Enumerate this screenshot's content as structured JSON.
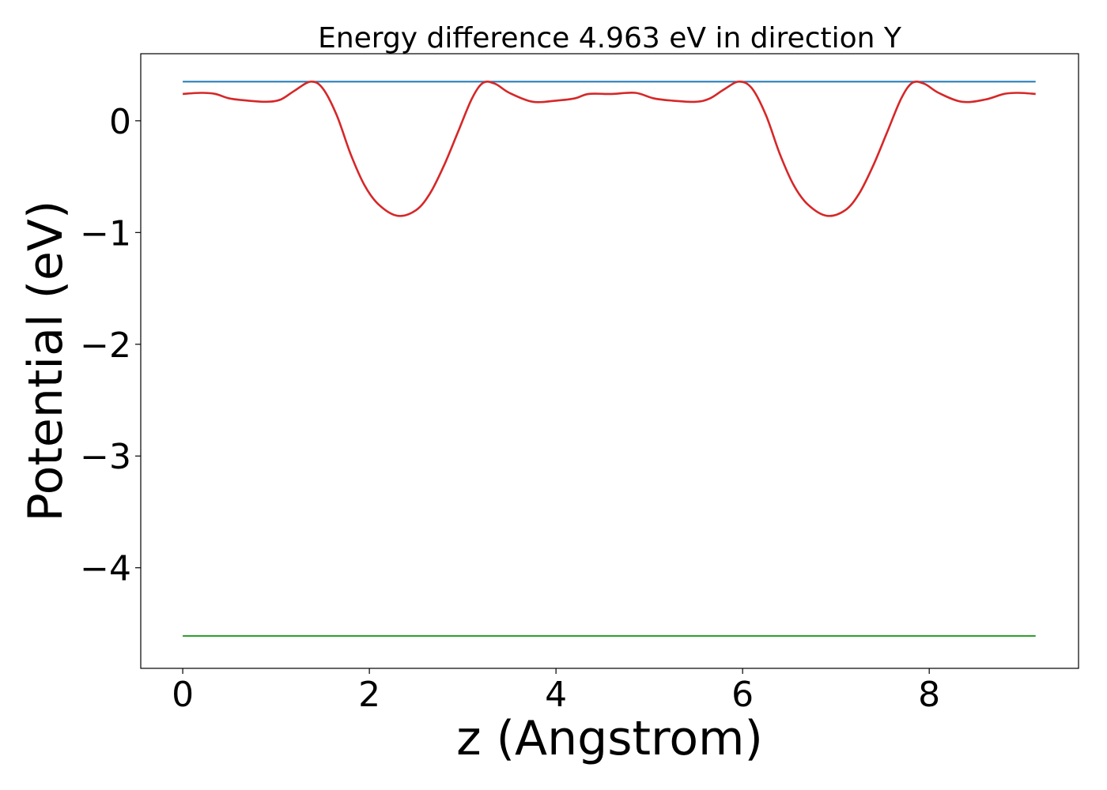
{
  "chart_data": {
    "type": "line",
    "title": "Energy difference 4.963 eV in direction Y",
    "xlabel": "z (Angstrom)",
    "ylabel": "Potential (eV)",
    "xlim": [
      -0.45,
      9.6
    ],
    "ylim": [
      -4.9,
      0.6
    ],
    "x_ticks": [
      0,
      2,
      4,
      6,
      8
    ],
    "x_tick_labels": [
      "0",
      "2",
      "4",
      "6",
      "8"
    ],
    "y_ticks": [
      0,
      -1,
      -2,
      -3,
      -4
    ],
    "y_tick_labels": [
      "0",
      "−1",
      "−2",
      "−3",
      "−4"
    ],
    "grid": false,
    "legend": "none",
    "series": [
      {
        "color": "#1f77b4",
        "x": [
          0,
          9.14
        ],
        "y": [
          0.35,
          0.35
        ]
      },
      {
        "color": "#d62728",
        "x": [
          0,
          0.2,
          0.35,
          0.5,
          0.7,
          0.9,
          1.05,
          1.2,
          1.37,
          1.5,
          1.65,
          1.8,
          1.95,
          2.1,
          2.3,
          2.5,
          2.65,
          2.8,
          2.95,
          3.1,
          3.22,
          3.35,
          3.5,
          3.75,
          4.0,
          4.2,
          4.35,
          4.6,
          4.85,
          5.05,
          5.25,
          5.5,
          5.65,
          5.8,
          5.96,
          6.1,
          6.25,
          6.4,
          6.55,
          6.7,
          6.9,
          7.1,
          7.25,
          7.4,
          7.55,
          7.7,
          7.82,
          7.95,
          8.1,
          8.35,
          8.6,
          8.8,
          8.95,
          9.14
        ],
        "y": [
          0.24,
          0.25,
          0.24,
          0.2,
          0.18,
          0.17,
          0.19,
          0.27,
          0.35,
          0.29,
          0.05,
          -0.3,
          -0.58,
          -0.75,
          -0.85,
          -0.8,
          -0.65,
          -0.4,
          -0.1,
          0.2,
          0.34,
          0.33,
          0.25,
          0.17,
          0.18,
          0.2,
          0.24,
          0.24,
          0.25,
          0.2,
          0.18,
          0.17,
          0.2,
          0.28,
          0.35,
          0.29,
          0.05,
          -0.3,
          -0.58,
          -0.75,
          -0.85,
          -0.8,
          -0.65,
          -0.4,
          -0.1,
          0.2,
          0.34,
          0.33,
          0.25,
          0.17,
          0.19,
          0.24,
          0.25,
          0.24
        ]
      },
      {
        "color": "#2ca02c",
        "x": [
          0,
          9.14
        ],
        "y": [
          -4.61,
          -4.61
        ]
      }
    ]
  }
}
